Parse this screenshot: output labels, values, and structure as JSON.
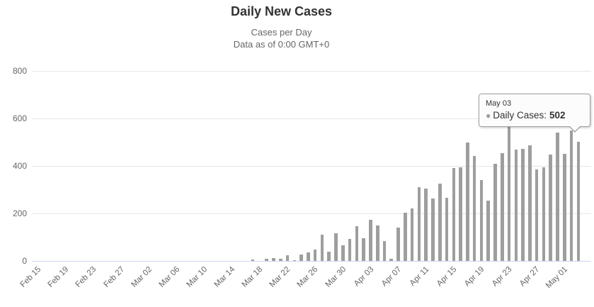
{
  "chart": {
    "title": "Daily New Cases",
    "subtitle_line1": "Cases per Day",
    "subtitle_line2": "Data as of 0:00 GMT+0"
  },
  "tooltip": {
    "date": "May 03",
    "marker": "●",
    "marker_color": "#9e9e9e",
    "series_label": "Daily Cases:",
    "value": "502"
  },
  "chart_data": {
    "type": "bar",
    "title": "Daily New Cases",
    "subtitle": [
      "Cases per Day",
      "Data as of 0:00 GMT+0"
    ],
    "xlabel": "",
    "ylabel": "",
    "ylim": [
      0,
      800
    ],
    "yticks": [
      0,
      200,
      400,
      600,
      800
    ],
    "grid": true,
    "legend": false,
    "xtick_every": 4,
    "bar_color": "#9e9e9e",
    "grid_color": "#e6e6e6",
    "axis_line_color": "#ccd6eb",
    "label_color": "#666666",
    "categories": [
      "Feb 15",
      "Feb 16",
      "Feb 17",
      "Feb 18",
      "Feb 19",
      "Feb 20",
      "Feb 21",
      "Feb 22",
      "Feb 23",
      "Feb 24",
      "Feb 25",
      "Feb 26",
      "Feb 27",
      "Feb 28",
      "Feb 29",
      "Mar 01",
      "Mar 02",
      "Mar 03",
      "Mar 04",
      "Mar 05",
      "Mar 06",
      "Mar 07",
      "Mar 08",
      "Mar 09",
      "Mar 10",
      "Mar 11",
      "Mar 12",
      "Mar 13",
      "Mar 14",
      "Mar 15",
      "Mar 16",
      "Mar 17",
      "Mar 18",
      "Mar 19",
      "Mar 20",
      "Mar 21",
      "Mar 22",
      "Mar 23",
      "Mar 24",
      "Mar 25",
      "Mar 26",
      "Mar 27",
      "Mar 28",
      "Mar 29",
      "Mar 30",
      "Mar 31",
      "Apr 01",
      "Apr 02",
      "Apr 03",
      "Apr 04",
      "Apr 05",
      "Apr 06",
      "Apr 07",
      "Apr 08",
      "Apr 09",
      "Apr 10",
      "Apr 11",
      "Apr 12",
      "Apr 13",
      "Apr 14",
      "Apr 15",
      "Apr 16",
      "Apr 17",
      "Apr 18",
      "Apr 19",
      "Apr 20",
      "Apr 21",
      "Apr 22",
      "Apr 23",
      "Apr 24",
      "Apr 25",
      "Apr 26",
      "Apr 27",
      "Apr 28",
      "Apr 29",
      "Apr 30",
      "May 01",
      "May 02",
      "May 03"
    ],
    "values": [
      0,
      0,
      0,
      0,
      0,
      0,
      0,
      0,
      0,
      0,
      0,
      0,
      0,
      0,
      0,
      0,
      0,
      0,
      0,
      0,
      0,
      0,
      0,
      0,
      0,
      0,
      0,
      0,
      0,
      0,
      0,
      5,
      0,
      8,
      13,
      10,
      25,
      2,
      28,
      37,
      49,
      110,
      40,
      115,
      66,
      93,
      146,
      96,
      172,
      150,
      85,
      10,
      139,
      202,
      222,
      309,
      305,
      264,
      324,
      267,
      390,
      395,
      500,
      442,
      339,
      255,
      408,
      455,
      578,
      469,
      471,
      486,
      384,
      395,
      449,
      540,
      450,
      550,
      502
    ],
    "tooltip_point": {
      "category": "May 03",
      "value": 502
    }
  }
}
